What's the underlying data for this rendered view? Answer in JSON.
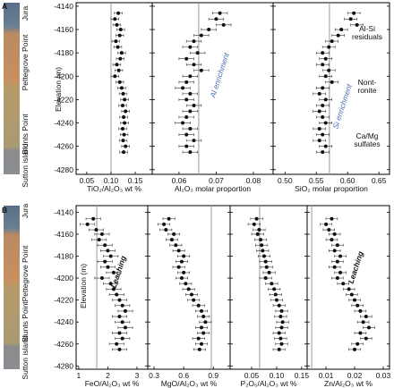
{
  "strat_column": [
    "Jura",
    "Pettegrove Point",
    "Blunts Point",
    "Sutton island"
  ],
  "chart_data": [
    {
      "type": "scatter",
      "label": "A",
      "y_label": "Elevation (m)",
      "ylim": [
        -4137,
        -4284
      ],
      "yticks": [
        -4140,
        -4160,
        -4180,
        -4200,
        -4220,
        -4240,
        -4260,
        -4280
      ],
      "y": [
        -4146,
        -4151,
        -4156,
        -4160,
        -4165,
        -4170,
        -4175,
        -4180,
        -4185,
        -4190,
        -4195,
        -4200,
        -4205,
        -4210,
        -4215,
        -4220,
        -4225,
        -4230,
        -4235,
        -4240,
        -4245,
        -4250,
        -4255,
        -4260,
        -4265
      ],
      "subplots": [
        {
          "xlabel": "TiO₂/Al₂O₃ wt %",
          "xlim": [
            0.028,
            0.185
          ],
          "xticks": [
            0.05,
            {
              "value": 0.1,
              "label": "0.10"
            },
            0.15
          ],
          "ref_line": 0.1,
          "error": 0.008,
          "values": [
            0.115,
            0.108,
            0.112,
            0.12,
            0.118,
            0.11,
            0.114,
            0.122,
            0.119,
            0.112,
            0.116,
            0.108,
            0.118,
            0.122,
            0.125,
            0.128,
            0.124,
            0.13,
            0.126,
            0.128,
            0.124,
            0.127,
            0.125,
            0.13,
            0.126
          ],
          "annotations": []
        },
        {
          "xlabel": "Al₂O₃ molar proportion",
          "xlim": [
            0.0528,
            0.0853
          ],
          "xticks": [
            0.06,
            0.07,
            0.08
          ],
          "ref_line": 0.0653,
          "error": 0.002,
          "values": [
            0.071,
            0.07,
            0.072,
            0.068,
            0.066,
            0.064,
            0.063,
            0.065,
            0.062,
            0.064,
            0.066,
            0.063,
            0.062,
            0.061,
            0.063,
            0.062,
            0.064,
            0.063,
            0.062,
            0.061,
            0.063,
            0.062,
            0.064,
            0.062,
            0.063
          ],
          "annotations": [
            [
              "Al enrichment"
            ]
          ]
        },
        {
          "xlabel": "SiO₂ molar proportion",
          "xlim": [
            0.481,
            0.667
          ],
          "xticks": [
            {
              "value": 0.5,
              "label": "0.50"
            },
            0.55,
            {
              "value": 0.6,
              "label": "0.60"
            },
            0.65
          ],
          "ref_line": 0.571,
          "error": 0.01,
          "values": [
            0.61,
            0.605,
            0.615,
            0.59,
            0.585,
            0.575,
            0.57,
            0.56,
            0.565,
            0.56,
            0.57,
            0.565,
            0.575,
            0.56,
            0.555,
            0.565,
            0.56,
            0.555,
            0.56,
            0.565,
            0.555,
            0.56,
            0.555,
            0.565,
            0.56
          ],
          "annotations": [
            [
              "Si enrichment"
            ],
            [
              "Al-Si",
              "residuals"
            ],
            [
              "Nont-",
              "ronite"
            ],
            [
              "Ca/Mg",
              "sulfates"
            ]
          ]
        }
      ]
    },
    {
      "type": "scatter",
      "label": "B",
      "y_label": "Elevation (m)",
      "ylim": [
        -4134,
        -4283
      ],
      "yticks": [
        -4140,
        -4160,
        -4180,
        -4200,
        -4220,
        -4240,
        -4260,
        -4280
      ],
      "y": [
        -4146,
        -4151,
        -4156,
        -4160,
        -4165,
        -4170,
        -4175,
        -4180,
        -4185,
        -4190,
        -4195,
        -4200,
        -4205,
        -4210,
        -4215,
        -4220,
        -4225,
        -4230,
        -4235,
        -4240,
        -4245,
        -4250,
        -4255,
        -4260,
        -4265
      ],
      "subplots": [
        {
          "xlabel": "FeO/Al₂O₃ wt %",
          "xlim": [
            0.91,
            3.37
          ],
          "xticks": [
            1,
            2,
            3
          ],
          "ref_line": 1.62,
          "error": 0.25,
          "values": [
            1.5,
            1.3,
            1.6,
            1.8,
            1.7,
            1.9,
            2.0,
            2.1,
            1.9,
            2.0,
            2.2,
            1.8,
            2.1,
            2.2,
            2.3,
            2.4,
            2.5,
            2.6,
            2.4,
            2.5,
            2.6,
            2.4,
            2.5,
            2.3,
            2.4
          ],
          "annotations": [
            [
              "Leaching"
            ]
          ]
        },
        {
          "xlabel": "MgO/Al₂O₃ wt %",
          "xlim": [
            0.236,
            1.07
          ],
          "xticks": [
            0.3,
            0.6,
            0.9
          ],
          "ref_line": 0.88,
          "error": 0.06,
          "values": [
            0.45,
            0.4,
            0.42,
            0.5,
            0.48,
            0.52,
            0.55,
            0.6,
            0.58,
            0.55,
            0.6,
            0.58,
            0.62,
            0.65,
            0.68,
            0.7,
            0.75,
            0.78,
            0.8,
            0.82,
            0.78,
            0.8,
            0.75,
            0.78,
            0.76
          ],
          "annotations": []
        },
        {
          "xlabel": "P₂O₅/Al₂O₃ wt %",
          "xlim": [
            0.007,
            0.161
          ],
          "xticks": [
            0.05,
            {
              "value": 0.1,
              "label": "0.10"
            },
            0.15
          ],
          "ref_line": 0.066,
          "error": 0.012,
          "values": [
            0.06,
            0.055,
            0.065,
            0.062,
            0.068,
            0.07,
            0.072,
            0.075,
            0.078,
            0.08,
            0.085,
            0.078,
            0.09,
            0.095,
            0.098,
            0.1,
            0.105,
            0.11,
            0.108,
            0.112,
            0.11,
            0.105,
            0.108,
            0.11,
            0.105
          ],
          "annotations": []
        },
        {
          "xlabel": "Zn/Al₂O₃ wt %",
          "xlim": [
            0.0034,
            0.0322
          ],
          "xticks": [
            0.01,
            0.02,
            0.03
          ],
          "ref_line": 0.005,
          "error": 0.002,
          "values": [
            0.012,
            0.01,
            0.011,
            0.013,
            0.012,
            0.014,
            0.013,
            0.015,
            0.014,
            0.013,
            0.015,
            0.014,
            0.016,
            0.018,
            0.019,
            0.02,
            0.021,
            0.022,
            0.024,
            0.023,
            0.025,
            0.022,
            0.024,
            0.021,
            0.02
          ],
          "annotations": [
            [
              "Leaching"
            ]
          ]
        }
      ]
    }
  ]
}
